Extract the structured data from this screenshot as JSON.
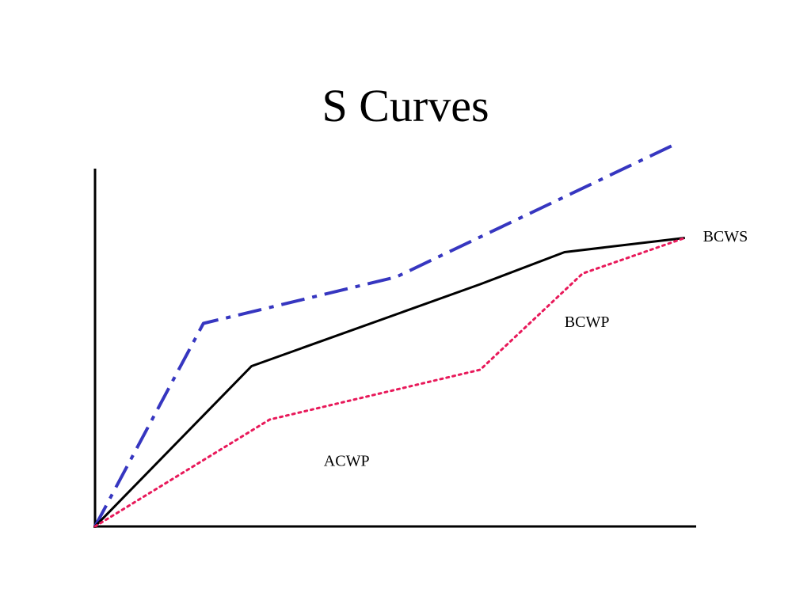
{
  "title": "S Curves",
  "chart_data": {
    "type": "line",
    "title": "S Curves",
    "xlabel": "",
    "ylabel": "",
    "xlim": [
      0,
      100
    ],
    "ylim": [
      0,
      100
    ],
    "grid": false,
    "legend": "inline labels",
    "series": [
      {
        "key": "blue",
        "color": "#3636c0",
        "style": "dash-dot",
        "points": [
          [
            0,
            0
          ],
          [
            18,
            57
          ],
          [
            50,
            70
          ],
          [
            96,
            107
          ]
        ]
      },
      {
        "key": "black",
        "color": "#000000",
        "style": "solid",
        "points": [
          [
            0,
            0
          ],
          [
            26,
            45
          ],
          [
            64,
            68
          ],
          [
            78,
            77
          ],
          [
            98,
            81
          ]
        ]
      },
      {
        "key": "pink",
        "color": "#e8195a",
        "style": "dotted",
        "points": [
          [
            0,
            0
          ],
          [
            29,
            30
          ],
          [
            64,
            44
          ],
          [
            81,
            71
          ],
          [
            98,
            81
          ]
        ]
      }
    ],
    "labels": [
      {
        "text": "BCWS",
        "x": 101,
        "y": 81
      },
      {
        "text": "BCWP",
        "x": 78,
        "y": 57
      },
      {
        "text": "ACWP",
        "x": 38,
        "y": 18
      }
    ]
  }
}
